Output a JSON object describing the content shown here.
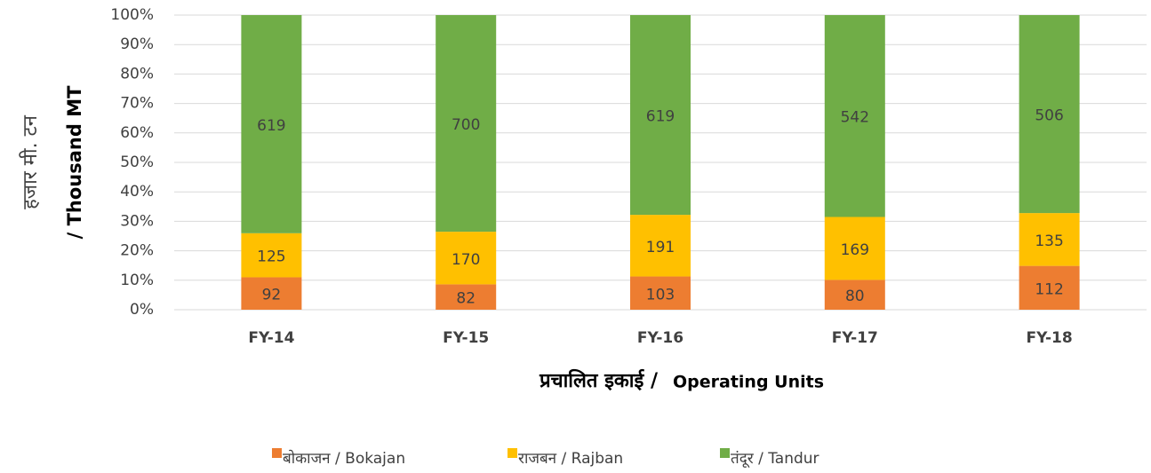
{
  "chart_data": {
    "type": "bar",
    "stacking": "percent",
    "categories": [
      "FY-14",
      "FY-15",
      "FY-16",
      "FY-17",
      "FY-18"
    ],
    "series": [
      {
        "name": "बोकाजन / Bokajan",
        "color": "#ed7d31",
        "values": [
          92,
          82,
          103,
          80,
          112
        ]
      },
      {
        "name": "राजबन / Rajban",
        "color": "#ffc000",
        "values": [
          125,
          170,
          191,
          169,
          135
        ]
      },
      {
        "name": "तंदूर / Tandur",
        "color": "#70ad47",
        "values": [
          619,
          700,
          619,
          542,
          506
        ]
      }
    ],
    "ylim": [
      0,
      100
    ],
    "yticks": [
      {
        "value": 0,
        "label": "0%"
      },
      {
        "value": 10,
        "label": "10%"
      },
      {
        "value": 20,
        "label": "20%"
      },
      {
        "value": 30,
        "label": "30%"
      },
      {
        "value": 40,
        "label": "40%"
      },
      {
        "value": 50,
        "label": "50%"
      },
      {
        "value": 60,
        "label": "60%"
      },
      {
        "value": 70,
        "label": "70%"
      },
      {
        "value": 80,
        "label": "80%"
      },
      {
        "value": 90,
        "label": "90%"
      },
      {
        "value": 100,
        "label": "100%"
      }
    ],
    "ylabel": [
      "हजार मी. टन",
      "/ Thousand MT"
    ],
    "xlabel": [
      "प्रचालित इकाई /",
      "Operating Units"
    ],
    "grid": true,
    "legend": "bottom"
  }
}
